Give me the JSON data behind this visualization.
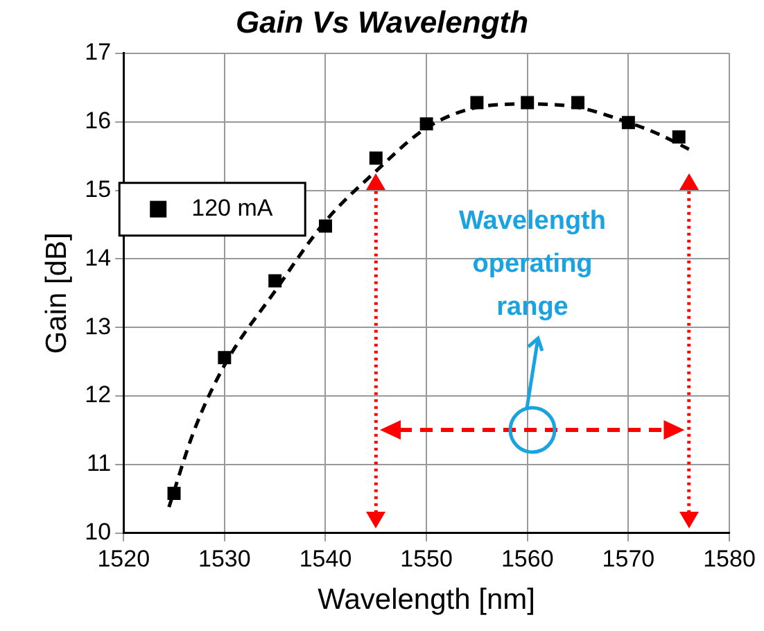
{
  "chart_data": {
    "type": "scatter",
    "title": "Gain Vs Wavelength",
    "xlabel": "Wavelength [nm]",
    "ylabel": "Gain [dB]",
    "series": [
      {
        "name": "120 mA",
        "color": "#000000",
        "marker": "square",
        "x": [
          1525,
          1530,
          1535,
          1540,
          1545,
          1550,
          1555,
          1560,
          1565,
          1570,
          1575
        ],
        "values": [
          10.58,
          12.56,
          13.68,
          14.48,
          15.47,
          15.97,
          16.28,
          16.28,
          16.28,
          15.99,
          15.78
        ]
      },
      {
        "type": "line",
        "color": "#000000",
        "line_style": "dashed",
        "marker": "none",
        "x": [
          1524.5,
          1527,
          1530,
          1535,
          1540,
          1545,
          1550,
          1555,
          1560,
          1565,
          1570,
          1573,
          1576
        ],
        "values": [
          10.38,
          11.5,
          12.45,
          13.53,
          14.55,
          15.28,
          15.91,
          16.21,
          16.26,
          16.21,
          15.99,
          15.82,
          15.6
        ]
      }
    ],
    "xlim": [
      1520,
      1580
    ],
    "xticks": [
      1520,
      1530,
      1540,
      1550,
      1560,
      1570,
      1580
    ],
    "ylim": [
      10,
      17
    ],
    "yticks": [
      10,
      11,
      12,
      13,
      14,
      15,
      16,
      17
    ],
    "grid": true,
    "legend": "left",
    "ref_lines": [
      {
        "axis": "x",
        "value": 1545,
        "color": "#ff0000",
        "line_style": "dotted"
      },
      {
        "axis": "x",
        "value": 1576,
        "color": "#ff0000",
        "line_style": "dotted"
      }
    ],
    "annotations": [
      "Wavelength operating range"
    ]
  }
}
